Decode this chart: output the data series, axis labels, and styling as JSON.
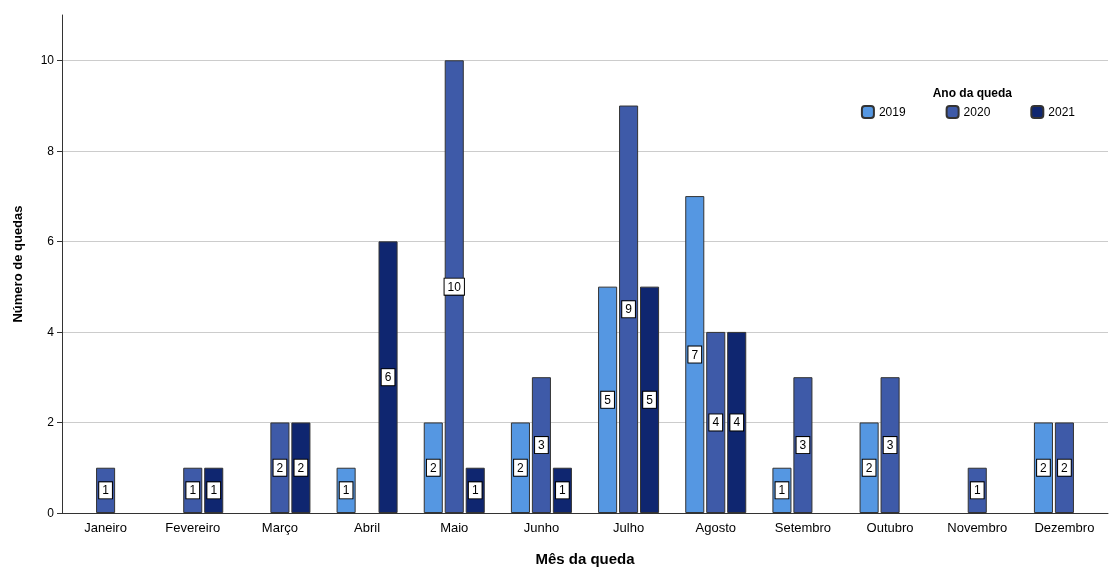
{
  "chart_data": {
    "type": "bar",
    "xlabel": "Mês da queda",
    "ylabel": "Número de quedas",
    "legend_title": "Ano da queda",
    "categories": [
      "Janeiro",
      "Fevereiro",
      "Março",
      "Abril",
      "Maio",
      "Junho",
      "Julho",
      "Agosto",
      "Setembro",
      "Outubro",
      "Novembro",
      "Dezembro"
    ],
    "series": [
      {
        "name": "2019",
        "color": "#5597e2",
        "values": [
          null,
          null,
          null,
          1,
          2,
          2,
          5,
          7,
          1,
          2,
          null,
          2
        ]
      },
      {
        "name": "2020",
        "color": "#3e5aa8",
        "values": [
          1,
          1,
          2,
          null,
          10,
          3,
          9,
          4,
          3,
          3,
          1,
          2
        ]
      },
      {
        "name": "2021",
        "color": "#0f2670",
        "values": [
          null,
          1,
          2,
          6,
          1,
          1,
          5,
          4,
          null,
          null,
          null,
          null
        ]
      }
    ],
    "ylim": [
      0,
      11
    ],
    "yticks": [
      0,
      2,
      4,
      6,
      8,
      10
    ],
    "grid": "y",
    "legend": "top right",
    "data_labels": true
  }
}
